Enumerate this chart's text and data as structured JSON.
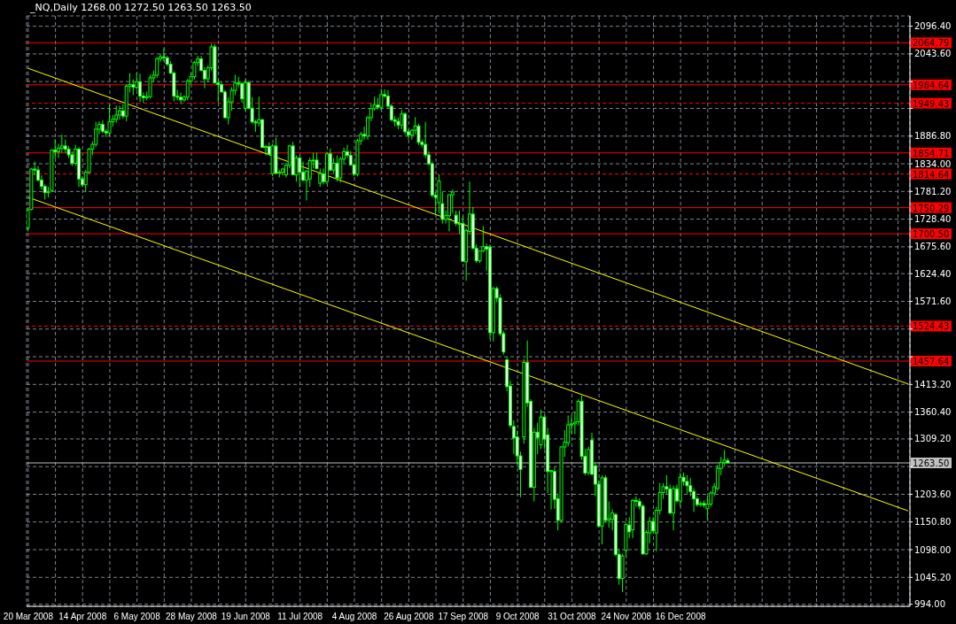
{
  "chart_data": {
    "type": "candlestick",
    "title": "_NQ,Daily  1268.00 1272.50 1263.50 1263.50",
    "color": "#00ff00",
    "grid": true,
    "categories": [
      "20 Mar 2008",
      null,
      null,
      null,
      null,
      null,
      null,
      null,
      null,
      null,
      null,
      null,
      null,
      null,
      null,
      null,
      "14 Apr 2008",
      null,
      null,
      null,
      null,
      null,
      null,
      null,
      null,
      null,
      null,
      null,
      null,
      null,
      null,
      null,
      "6 May 2008",
      null,
      null,
      null,
      null,
      null,
      null,
      null,
      null,
      null,
      null,
      null,
      null,
      null,
      null,
      null,
      "28 May 2008",
      null,
      null,
      null,
      null,
      null,
      null,
      null,
      null,
      null,
      null,
      null,
      null,
      null,
      null,
      null,
      "19 Jun 2008",
      null,
      null,
      null,
      null,
      null,
      null,
      null,
      null,
      null,
      null,
      null,
      null,
      null,
      null,
      null,
      "11 Jul 2008",
      null,
      null,
      null,
      null,
      null,
      null,
      null,
      null,
      null,
      null,
      null,
      null,
      null,
      null,
      null,
      "4 Aug 2008",
      null,
      null,
      null,
      null,
      null,
      null,
      null,
      null,
      null,
      null,
      null,
      null,
      null,
      null,
      null,
      "26 Aug 2008",
      null,
      null,
      null,
      null,
      null,
      null,
      null,
      null,
      null,
      null,
      null,
      null,
      null,
      null,
      null,
      "17 Sep 2008",
      null,
      null,
      null,
      null,
      null,
      null,
      null,
      null,
      null,
      null,
      null,
      null,
      null,
      null,
      null,
      "9 Oct 2008",
      null,
      null,
      null,
      null,
      null,
      null,
      null,
      null,
      null,
      null,
      null,
      null,
      null,
      null,
      null,
      "31 Oct 2008",
      null,
      null,
      null,
      null,
      null,
      null,
      null,
      null,
      null,
      null,
      null,
      null,
      null,
      null,
      null,
      "24 Nov 2008",
      null,
      null,
      null,
      null,
      null,
      null,
      null,
      null,
      null,
      null,
      null,
      null,
      null,
      null,
      null,
      "16 Dec 2008",
      null,
      null,
      null,
      null,
      null,
      null,
      null,
      null,
      null,
      null,
      null,
      null,
      null,
      null,
      null,
      null,
      null,
      null,
      null,
      null,
      null,
      null,
      null,
      null,
      null,
      null,
      null,
      null,
      null,
      null,
      null,
      null,
      null,
      null,
      null,
      null,
      null,
      null,
      null,
      null,
      null,
      null,
      null,
      null,
      null,
      null,
      null,
      null,
      null,
      null,
      null,
      null,
      null,
      null,
      null,
      null,
      null,
      null,
      null,
      null,
      null,
      null,
      null,
      null,
      null,
      null,
      null
    ],
    "ohlc": [
      [
        1712,
        1750,
        1705,
        1745
      ],
      [
        1747,
        1826,
        1745,
        1824
      ],
      [
        1824,
        1838,
        1812,
        1822
      ],
      [
        1822,
        1830,
        1800,
        1803
      ],
      [
        1803,
        1812,
        1785,
        1791
      ],
      [
        1791,
        1795,
        1766,
        1779
      ],
      [
        1779,
        1790,
        1770,
        1781
      ],
      [
        1783,
        1862,
        1780,
        1860
      ],
      [
        1860,
        1881,
        1844,
        1857
      ],
      [
        1857,
        1872,
        1845,
        1864
      ],
      [
        1864,
        1890,
        1855,
        1868
      ],
      [
        1868,
        1880,
        1855,
        1862
      ],
      [
        1862,
        1868,
        1845,
        1851
      ],
      [
        1851,
        1858,
        1830,
        1835
      ],
      [
        1835,
        1870,
        1830,
        1862
      ],
      [
        1862,
        1866,
        1790,
        1805
      ],
      [
        1805,
        1810,
        1790,
        1794
      ],
      [
        1794,
        1822,
        1780,
        1818
      ],
      [
        1818,
        1865,
        1815,
        1862
      ],
      [
        1862,
        1877,
        1850,
        1871
      ],
      [
        1871,
        1914,
        1866,
        1900
      ],
      [
        1900,
        1915,
        1890,
        1909
      ],
      [
        1909,
        1917,
        1892,
        1896
      ],
      [
        1896,
        1900,
        1885,
        1893
      ],
      [
        1893,
        1947,
        1888,
        1914
      ],
      [
        1914,
        1927,
        1905,
        1919
      ],
      [
        1919,
        1945,
        1912,
        1927
      ],
      [
        1927,
        1945,
        1918,
        1935
      ],
      [
        1935,
        1948,
        1920,
        1925
      ],
      [
        1925,
        1986,
        1915,
        1982
      ],
      [
        1982,
        2007,
        1970,
        1985
      ],
      [
        1985,
        1995,
        1965,
        1980
      ],
      [
        1980,
        2007,
        1975,
        1990
      ],
      [
        1990,
        2006,
        1952,
        1963
      ],
      [
        1963,
        1970,
        1950,
        1960
      ],
      [
        1960,
        1972,
        1955,
        1962
      ],
      [
        1962,
        2004,
        1958,
        1998
      ],
      [
        1998,
        2012,
        1990,
        2003
      ],
      [
        2003,
        2038,
        1998,
        2034
      ],
      [
        2034,
        2044,
        2028,
        2038
      ],
      [
        2038,
        2054,
        2030,
        2036
      ],
      [
        2036,
        2040,
        2020,
        2024
      ],
      [
        2024,
        2030,
        2005,
        2007
      ],
      [
        2007,
        2010,
        1953,
        1963
      ],
      [
        1963,
        1975,
        1955,
        1961
      ],
      [
        1961,
        1970,
        1948,
        1956
      ],
      [
        1956,
        1965,
        1952,
        1961
      ],
      [
        1961,
        1996,
        1955,
        1992
      ],
      [
        1992,
        2008,
        1985,
        2000
      ],
      [
        2000,
        2030,
        1995,
        2027
      ],
      [
        2027,
        2040,
        2020,
        2034
      ],
      [
        2034,
        2040,
        2010,
        2012
      ],
      [
        2012,
        2018,
        1978,
        1996
      ],
      [
        1996,
        2022,
        1990,
        2017
      ],
      [
        2017,
        2063,
        2012,
        2057
      ],
      [
        2057,
        2062,
        1988,
        1988
      ],
      [
        1988,
        1995,
        1950,
        1985
      ],
      [
        1985,
        1990,
        1970,
        1971
      ],
      [
        1971,
        1975,
        1920,
        1922
      ],
      [
        1922,
        1960,
        1909,
        1952
      ],
      [
        1952,
        1980,
        1935,
        1974
      ],
      [
        1974,
        2004,
        1965,
        1988
      ],
      [
        1988,
        2000,
        1980,
        1987
      ],
      [
        1987,
        1990,
        1950,
        1958
      ],
      [
        1940,
        1995,
        1935,
        1989
      ],
      [
        1989,
        1992,
        1938,
        1940
      ],
      [
        1940,
        1961,
        1910,
        1914
      ],
      [
        1914,
        1918,
        1895,
        1912
      ],
      [
        1912,
        1962,
        1905,
        1918
      ],
      [
        1918,
        1920,
        1865,
        1865
      ],
      [
        1865,
        1870,
        1850,
        1867
      ],
      [
        1867,
        1875,
        1850,
        1852
      ],
      [
        1815,
        1872,
        1810,
        1868
      ],
      [
        1868,
        1884,
        1815,
        1816
      ],
      [
        1816,
        1822,
        1808,
        1818
      ],
      [
        1818,
        1826,
        1812,
        1824
      ],
      [
        1813,
        1836,
        1808,
        1831
      ],
      [
        1831,
        1870,
        1826,
        1868
      ],
      [
        1868,
        1876,
        1812,
        1813
      ],
      [
        1813,
        1850,
        1800,
        1845
      ],
      [
        1845,
        1850,
        1789,
        1818
      ],
      [
        1818,
        1838,
        1800,
        1803
      ],
      [
        1803,
        1822,
        1764,
        1820
      ],
      [
        1805,
        1846,
        1790,
        1840
      ],
      [
        1840,
        1855,
        1825,
        1841
      ],
      [
        1841,
        1855,
        1823,
        1825
      ],
      [
        1797,
        1825,
        1790,
        1815
      ],
      [
        1815,
        1825,
        1795,
        1800
      ],
      [
        1800,
        1857,
        1795,
        1853
      ],
      [
        1853,
        1863,
        1820,
        1822
      ],
      [
        1822,
        1845,
        1815,
        1835
      ],
      [
        1835,
        1850,
        1800,
        1807
      ],
      [
        1807,
        1847,
        1798,
        1843
      ],
      [
        1843,
        1865,
        1835,
        1857
      ],
      [
        1857,
        1870,
        1845,
        1850
      ],
      [
        1850,
        1858,
        1830,
        1832
      ],
      [
        1832,
        1836,
        1810,
        1814
      ],
      [
        1814,
        1882,
        1810,
        1878
      ],
      [
        1878,
        1895,
        1870,
        1890
      ],
      [
        1890,
        1905,
        1880,
        1887
      ],
      [
        1887,
        1925,
        1880,
        1922
      ],
      [
        1922,
        1950,
        1915,
        1939
      ],
      [
        1939,
        1962,
        1935,
        1946
      ],
      [
        1946,
        1960,
        1938,
        1942
      ],
      [
        1942,
        1977,
        1935,
        1966
      ],
      [
        1966,
        1976,
        1960,
        1963
      ],
      [
        1963,
        1975,
        1940,
        1944
      ],
      [
        1944,
        1948,
        1915,
        1918
      ],
      [
        1918,
        1925,
        1905,
        1915
      ],
      [
        1915,
        1922,
        1900,
        1908
      ],
      [
        1908,
        1937,
        1900,
        1929
      ],
      [
        1929,
        1932,
        1890,
        1895
      ],
      [
        1895,
        1900,
        1880,
        1889
      ],
      [
        1889,
        1900,
        1880,
        1898
      ],
      [
        1898,
        1923,
        1890,
        1906
      ],
      [
        1906,
        1910,
        1870,
        1875
      ],
      [
        1875,
        1880,
        1865,
        1871
      ],
      [
        1871,
        1914,
        1845,
        1851
      ],
      [
        1851,
        1858,
        1830,
        1834
      ],
      [
        1834,
        1838,
        1770,
        1774
      ],
      [
        1774,
        1780,
        1737,
        1770
      ],
      [
        1760,
        1814,
        1740,
        1801
      ],
      [
        1758,
        1780,
        1720,
        1728
      ],
      [
        1728,
        1745,
        1720,
        1735
      ],
      [
        1735,
        1775,
        1705,
        1775
      ],
      [
        1775,
        1785,
        1740,
        1780
      ],
      [
        1736,
        1745,
        1715,
        1720
      ],
      [
        1720,
        1745,
        1700,
        1719
      ],
      [
        1720,
        1735,
        1648,
        1648
      ],
      [
        1647,
        1710,
        1611,
        1707
      ],
      [
        1705,
        1800,
        1700,
        1738
      ],
      [
        1738,
        1752,
        1670,
        1673
      ],
      [
        1673,
        1680,
        1645,
        1649
      ],
      [
        1649,
        1668,
        1645,
        1668
      ],
      [
        1668,
        1715,
        1665,
        1676
      ],
      [
        1676,
        1682,
        1630,
        1671
      ],
      [
        1675,
        1680,
        1500,
        1512
      ],
      [
        1512,
        1600,
        1495,
        1596
      ],
      [
        1596,
        1600,
        1570,
        1578
      ],
      [
        1578,
        1585,
        1505,
        1510
      ],
      [
        1510,
        1515,
        1470,
        1475
      ],
      [
        1460,
        1465,
        1400,
        1409
      ],
      [
        1410,
        1420,
        1330,
        1335
      ],
      [
        1333,
        1345,
        1280,
        1311
      ],
      [
        1313,
        1325,
        1261,
        1277
      ],
      [
        1277,
        1285,
        1198,
        1251
      ],
      [
        1313,
        1462,
        1300,
        1455
      ],
      [
        1455,
        1497,
        1370,
        1378
      ],
      [
        1381,
        1385,
        1215,
        1217
      ],
      [
        1217,
        1330,
        1190,
        1322
      ],
      [
        1322,
        1340,
        1280,
        1312
      ],
      [
        1298,
        1365,
        1290,
        1351
      ],
      [
        1351,
        1355,
        1290,
        1309
      ],
      [
        1317,
        1330,
        1206,
        1247
      ],
      [
        1247,
        1250,
        1175,
        1249
      ],
      [
        1247,
        1255,
        1176,
        1194
      ],
      [
        1195,
        1205,
        1135,
        1154
      ],
      [
        1154,
        1295,
        1150,
        1294
      ],
      [
        1294,
        1326,
        1275,
        1303
      ],
      [
        1302,
        1354,
        1295,
        1336
      ],
      [
        1336,
        1354,
        1320,
        1338
      ],
      [
        1338,
        1360,
        1318,
        1341
      ],
      [
        1342,
        1385,
        1335,
        1381
      ],
      [
        1381,
        1392,
        1270,
        1276
      ],
      [
        1276,
        1290,
        1240,
        1244
      ],
      [
        1245,
        1295,
        1240,
        1289
      ],
      [
        1307,
        1321,
        1240,
        1242
      ],
      [
        1258,
        1265,
        1200,
        1223
      ],
      [
        1223,
        1230,
        1140,
        1143
      ],
      [
        1143,
        1240,
        1108,
        1235
      ],
      [
        1235,
        1240,
        1150,
        1154
      ],
      [
        1154,
        1190,
        1140,
        1157
      ],
      [
        1156,
        1175,
        1135,
        1168
      ],
      [
        1165,
        1168,
        1085,
        1089
      ],
      [
        1089,
        1100,
        1031,
        1043
      ],
      [
        1043,
        1090,
        1017,
        1086
      ],
      [
        1097,
        1150,
        1085,
        1146
      ],
      [
        1145,
        1160,
        1120,
        1132
      ],
      [
        1136,
        1195,
        1120,
        1192
      ],
      [
        1192,
        1200,
        1180,
        1190
      ],
      [
        1190,
        1196,
        1175,
        1181
      ],
      [
        1181,
        1185,
        1088,
        1090
      ],
      [
        1090,
        1135,
        1088,
        1131
      ],
      [
        1130,
        1160,
        1110,
        1152
      ],
      [
        1152,
        1160,
        1130,
        1134
      ],
      [
        1130,
        1180,
        1095,
        1173
      ],
      [
        1173,
        1225,
        1165,
        1207
      ],
      [
        1207,
        1225,
        1195,
        1218
      ],
      [
        1218,
        1240,
        1205,
        1214
      ],
      [
        1214,
        1222,
        1165,
        1168
      ],
      [
        1168,
        1220,
        1135,
        1214
      ],
      [
        1214,
        1222,
        1188,
        1191
      ],
      [
        1191,
        1245,
        1180,
        1236
      ],
      [
        1236,
        1245,
        1220,
        1228
      ],
      [
        1228,
        1240,
        1205,
        1220
      ],
      [
        1220,
        1235,
        1200,
        1209
      ],
      [
        1209,
        1215,
        1170,
        1195
      ],
      [
        1195,
        1200,
        1180,
        1184
      ],
      [
        1184,
        1190,
        1180,
        1186
      ],
      [
        1186,
        1192,
        1178,
        1183
      ],
      [
        1176,
        1200,
        1155,
        1185
      ],
      [
        1185,
        1210,
        1180,
        1206
      ],
      [
        1206,
        1225,
        1200,
        1218
      ],
      [
        1215,
        1260,
        1210,
        1253
      ],
      [
        1253,
        1275,
        1240,
        1264
      ],
      [
        1264,
        1288,
        1258,
        1269
      ],
      [
        1268,
        1272.5,
        1263.5,
        1263.5
      ],
      null,
      null,
      null,
      null,
      null,
      null,
      null,
      null,
      null,
      null,
      null,
      null,
      null,
      null,
      null,
      null,
      null,
      null,
      null,
      null,
      null,
      null,
      null,
      null,
      null,
      null,
      null,
      null,
      null,
      null,
      null,
      null,
      null,
      null,
      null,
      null,
      null,
      null,
      null,
      null,
      null,
      null,
      null,
      null,
      null,
      null,
      null,
      null,
      null,
      null,
      null,
      null,
      null
    ],
    "series": [
      {
        "type": "line",
        "color": "#ffff00",
        "values": [
          2016,
          null,
          null,
          null,
          null,
          null,
          null,
          null,
          null,
          null,
          null,
          null,
          null,
          null,
          null,
          null,
          null,
          null,
          null,
          null,
          null,
          null,
          null,
          null,
          null,
          null,
          null,
          null,
          null,
          null,
          null,
          null,
          null,
          null,
          null,
          null,
          null,
          null,
          null,
          null,
          null,
          null,
          null,
          null,
          null,
          null,
          null,
          null,
          null,
          null,
          null,
          null,
          null,
          null,
          null,
          null,
          null,
          null,
          null,
          null,
          null,
          null,
          null,
          null,
          null,
          null,
          null,
          null,
          null,
          null,
          null,
          null,
          null,
          null,
          null,
          null,
          null,
          null,
          null,
          null,
          null,
          null,
          null,
          null,
          null,
          null,
          null,
          null,
          null,
          null,
          null,
          null,
          null,
          null,
          null,
          null,
          null,
          null,
          null,
          null,
          null,
          null,
          null,
          null,
          null,
          null,
          null,
          null,
          null,
          null,
          null,
          null,
          null,
          null,
          null,
          null,
          null,
          null,
          null,
          null,
          null,
          null,
          null,
          null,
          null,
          null,
          null,
          null,
          null,
          null,
          null,
          null,
          null,
          null,
          null,
          null,
          null,
          null,
          null,
          null,
          null,
          null,
          null,
          null,
          null,
          null,
          null,
          null,
          null,
          null,
          null,
          null,
          null,
          null,
          null,
          null,
          null,
          null,
          null,
          null,
          null,
          null,
          null,
          null,
          null,
          null,
          null,
          null,
          null,
          null,
          null,
          null,
          null,
          null,
          null,
          null,
          null,
          null,
          null,
          null,
          null,
          null,
          null,
          null,
          null,
          null,
          null,
          null,
          null,
          null,
          null,
          null,
          null,
          null,
          null,
          null,
          null,
          null,
          null,
          null,
          null,
          null,
          null,
          null,
          null,
          null,
          null,
          null,
          null,
          null,
          null,
          null,
          null,
          null,
          null,
          null,
          null,
          null,
          null,
          null,
          null,
          null,
          null,
          null,
          null,
          null,
          null,
          null,
          null,
          null,
          null,
          null,
          null,
          null,
          null,
          null,
          null,
          null,
          null,
          null,
          null,
          null,
          null,
          null,
          null,
          null,
          null,
          null,
          null,
          null,
          null,
          null,
          null,
          null,
          null,
          null,
          null,
          null,
          null,
          1414
        ]
      },
      {
        "type": "line",
        "color": "#ffff00",
        "values": [
          1770,
          null,
          null,
          null,
          null,
          null,
          null,
          null,
          null,
          null,
          null,
          null,
          null,
          null,
          null,
          null,
          null,
          null,
          null,
          null,
          null,
          null,
          null,
          null,
          null,
          null,
          null,
          null,
          null,
          null,
          null,
          null,
          null,
          null,
          null,
          null,
          null,
          null,
          null,
          null,
          null,
          null,
          null,
          null,
          null,
          null,
          null,
          null,
          null,
          null,
          null,
          null,
          null,
          null,
          null,
          null,
          null,
          null,
          null,
          null,
          null,
          null,
          null,
          null,
          null,
          null,
          null,
          null,
          null,
          null,
          null,
          null,
          null,
          null,
          null,
          null,
          null,
          null,
          null,
          null,
          null,
          null,
          null,
          null,
          null,
          null,
          null,
          null,
          null,
          null,
          null,
          null,
          null,
          null,
          null,
          null,
          null,
          null,
          null,
          null,
          null,
          null,
          null,
          null,
          null,
          null,
          null,
          null,
          null,
          null,
          null,
          null,
          null,
          null,
          null,
          null,
          null,
          null,
          null,
          null,
          null,
          null,
          null,
          null,
          null,
          null,
          null,
          null,
          null,
          null,
          null,
          null,
          null,
          null,
          null,
          null,
          null,
          null,
          null,
          null,
          null,
          null,
          null,
          null,
          null,
          null,
          null,
          null,
          null,
          null,
          null,
          null,
          null,
          null,
          null,
          null,
          null,
          null,
          null,
          null,
          null,
          null,
          null,
          null,
          null,
          null,
          null,
          null,
          null,
          null,
          null,
          null,
          null,
          null,
          null,
          null,
          null,
          null,
          null,
          null,
          null,
          null,
          null,
          null,
          null,
          null,
          null,
          null,
          null,
          null,
          null,
          null,
          null,
          null,
          null,
          null,
          null,
          null,
          null,
          null,
          null,
          null,
          null,
          null,
          null,
          null,
          null,
          null,
          null,
          null,
          null,
          null,
          null,
          null,
          null,
          null,
          null,
          null,
          null,
          null,
          null,
          null,
          null,
          null,
          null,
          null,
          null,
          null,
          null,
          null,
          null,
          null,
          null,
          null,
          null,
          null,
          null,
          null,
          null,
          null,
          null,
          null,
          null,
          null,
          null,
          null,
          null,
          null,
          null,
          null,
          null,
          null,
          null,
          null,
          null,
          null,
          null,
          null,
          null,
          1172
        ]
      }
    ],
    "ylim": [
      990,
      2116
    ],
    "yticks": [
      {
        "value": 994,
        "label": "994.00"
      },
      {
        "value": 1045.2,
        "label": "1045.20"
      },
      {
        "value": 1098,
        "label": "1098.00"
      },
      {
        "value": 1150.8,
        "label": "1150.80"
      },
      {
        "value": 1203.6,
        "label": "1203.60"
      },
      {
        "value": 1256.4,
        "label": null
      },
      {
        "value": 1309.2,
        "label": "1309.20"
      },
      {
        "value": 1360.4,
        "label": "1360.40"
      },
      {
        "value": 1413.2,
        "label": "1413.20"
      },
      {
        "value": 1466,
        "label": null
      },
      {
        "value": 1518.8,
        "label": null
      },
      {
        "value": 1571.6,
        "label": "1571.60"
      },
      {
        "value": 1624.4,
        "label": "1624.40"
      },
      {
        "value": 1675.6,
        "label": "1675.60"
      },
      {
        "value": 1728.4,
        "label": "1728.40"
      },
      {
        "value": 1781.2,
        "label": "1781.20"
      },
      {
        "value": 1834,
        "label": "1834.00"
      },
      {
        "value": 1886.8,
        "label": "1886.80"
      },
      {
        "value": 1939.6,
        "label": null
      },
      {
        "value": 1990.8,
        "label": null
      },
      {
        "value": 2043.6,
        "label": "2043.60"
      },
      {
        "value": 2096.4,
        "label": "2096.40"
      }
    ],
    "ref_lines": [
      {
        "axis": "y",
        "value": 2064.79,
        "label": "2064.79",
        "color": "#ff0000",
        "line_style": "solid"
      },
      {
        "axis": "y",
        "value": 1984.64,
        "label": "1984.64",
        "color": "#ff0000",
        "line_style": "solid"
      },
      {
        "axis": "y",
        "value": 1949.43,
        "label": "1949.43",
        "color": "#ff0000",
        "line_style": "dashed"
      },
      {
        "axis": "y",
        "value": 1854.71,
        "label": "1854.71",
        "color": "#ff0000",
        "line_style": "solid"
      },
      {
        "axis": "y",
        "value": 1814.64,
        "label": "1814.64",
        "color": "#ff0000",
        "line_style": "dashed"
      },
      {
        "axis": "y",
        "value": 1750.29,
        "label": "1750.29",
        "color": "#ff0000",
        "line_style": "solid"
      },
      {
        "axis": "y",
        "value": 1700.5,
        "label": "1700.50",
        "color": "#ff0000",
        "line_style": "solid"
      },
      {
        "axis": "y",
        "value": 1524.43,
        "label": "1524.43",
        "color": "#ff0000",
        "line_style": "dashed"
      },
      {
        "axis": "y",
        "value": 1457.64,
        "label": "1457.64",
        "color": "#ff0000",
        "line_style": "solid"
      },
      {
        "axis": "y",
        "value": 1263.5,
        "label": "1263.50",
        "color": "#c0c0c0",
        "line_style": "solid"
      }
    ]
  }
}
